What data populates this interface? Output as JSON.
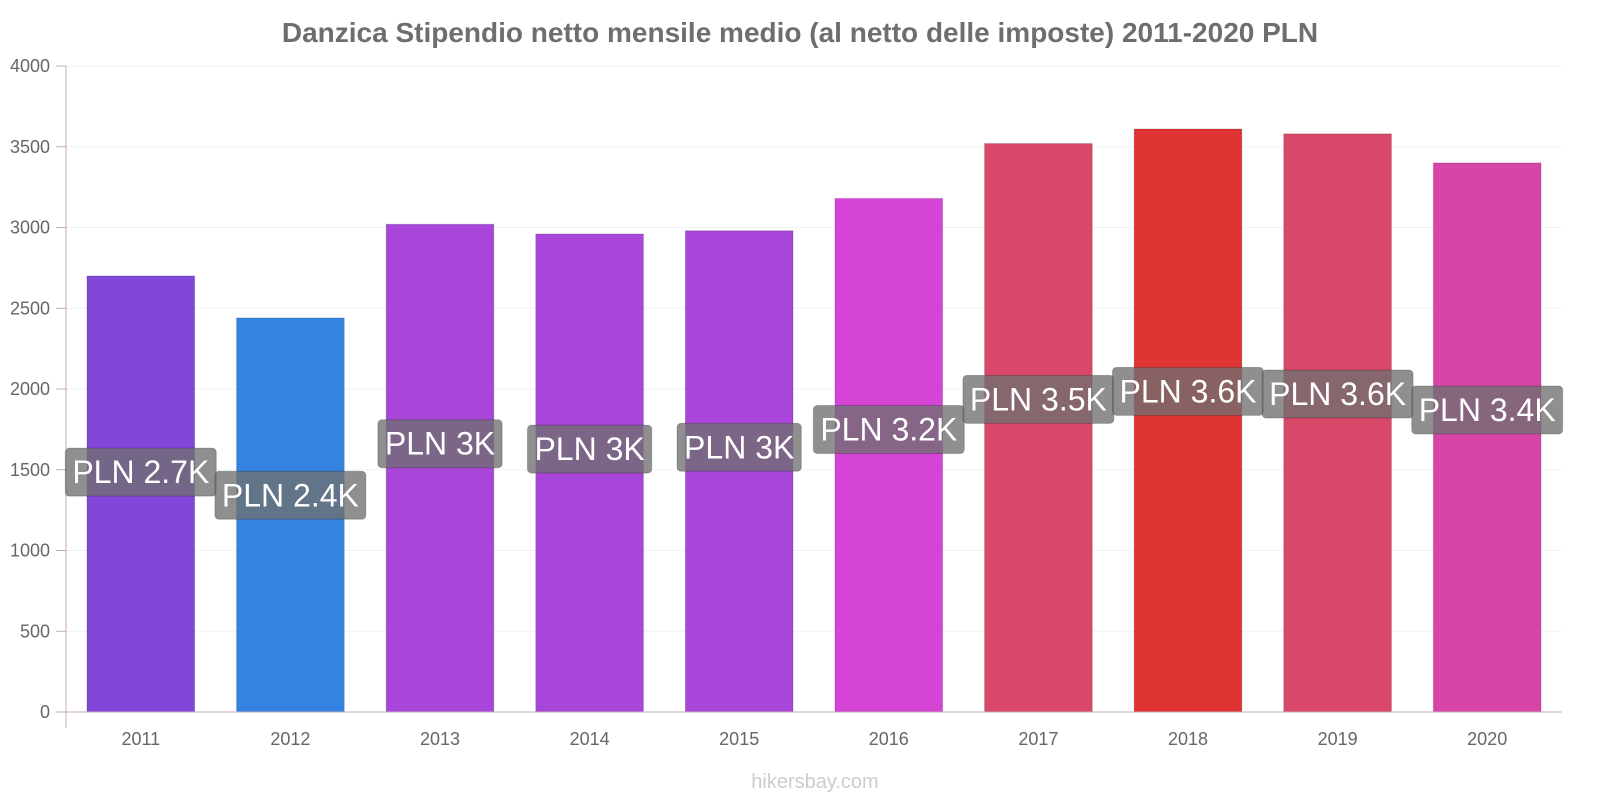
{
  "watermark": "hikersbay.com",
  "chart_data": {
    "type": "bar",
    "title": "Danzica Stipendio netto mensile medio (al netto delle imposte) 2011-2020 PLN",
    "xlabel": "",
    "ylabel": "",
    "ylim": [
      0,
      4000
    ],
    "yticks": [
      0,
      500,
      1000,
      1500,
      2000,
      2500,
      3000,
      3500,
      4000
    ],
    "grid": true,
    "categories": [
      "2011",
      "2012",
      "2013",
      "2014",
      "2015",
      "2016",
      "2017",
      "2018",
      "2019",
      "2020"
    ],
    "values": [
      2700,
      2440,
      3020,
      2960,
      2980,
      3180,
      3520,
      3610,
      3580,
      3400
    ],
    "labels": [
      "PLN 2.7K",
      "PLN 2.4K",
      "PLN 3K",
      "PLN 3K",
      "PLN 3K",
      "PLN 3.2K",
      "PLN 3.5K",
      "PLN 3.6K",
      "PLN 3.6K",
      "PLN 3.4K"
    ],
    "colors": [
      "#8047d9",
      "#3483e0",
      "#a846d9",
      "#a846d9",
      "#a846d9",
      "#d545d5",
      "#d94868",
      "#e03434",
      "#d94868",
      "#d745a8"
    ],
    "label_box_color": "#707070",
    "axis_color": "#c8a8b8"
  }
}
